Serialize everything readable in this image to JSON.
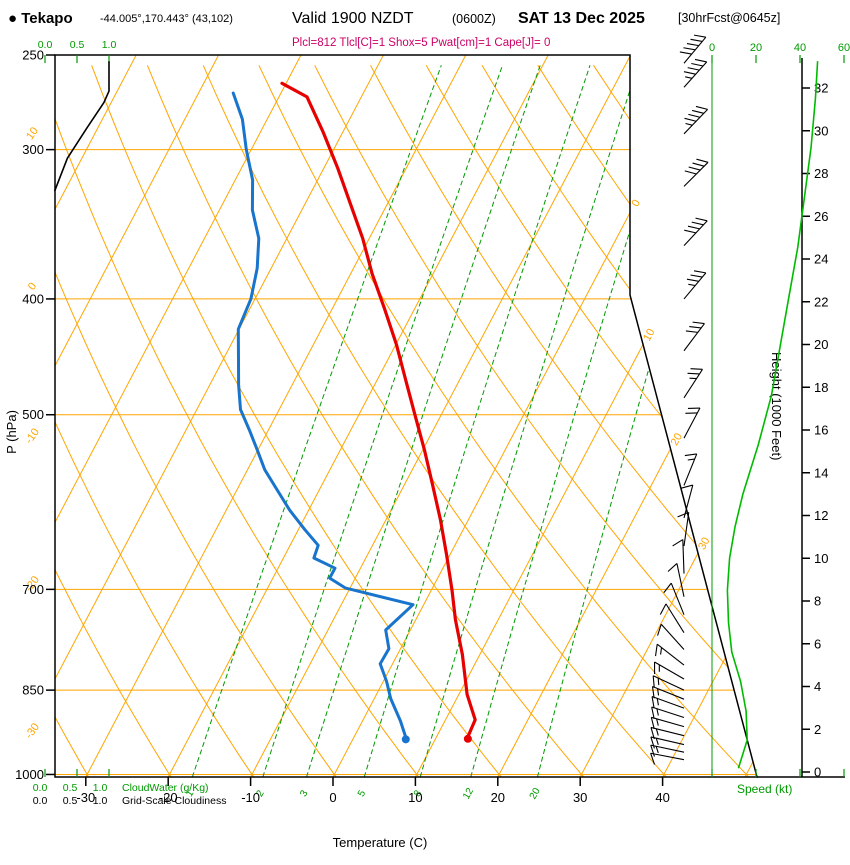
{
  "header": {
    "station": "● Tekapo",
    "coords": "-44.005°,170.443° (43,102)",
    "valid_main": "Valid 1900 NZDT",
    "valid_zulu": "(0600Z)",
    "valid_date": "SAT 13 Dec 2025",
    "forecast_ref": "[30hrFcst@0645z]",
    "indices": "Plcl=812 Tlcl[C]=1 Shox=5 Pwat[cm]=1 Cape[J]= 0"
  },
  "axes": {
    "pressure_label": "P (hPa)",
    "pressure_ticks": [
      250,
      300,
      400,
      500,
      700,
      850,
      1000
    ],
    "temp_label": "Temperature (C)",
    "temp_ticks": [
      -30,
      -20,
      -10,
      0,
      10,
      20,
      30,
      40
    ],
    "height_label": "Height (1000 Feet)",
    "height_ticks": [
      0,
      2,
      4,
      6,
      8,
      10,
      12,
      14,
      16,
      18,
      20,
      22,
      24,
      26,
      28,
      30,
      32
    ],
    "speed_label": "Speed (kt)",
    "speed_ticks": [
      0,
      20,
      40,
      60
    ],
    "cloud_scale_ticks": [
      "0.0",
      "0.5",
      "1.0"
    ],
    "cloudwater_label": "CloudWater (g/Kg)",
    "cloudiness_label": "Grid-Scale Cloudiness"
  },
  "chart_data": {
    "type": "skewt-logp-sounding",
    "title": "Tekapo 30hr forecast sounding valid 1900 NZDT (0600Z) SAT 13 Dec 2025",
    "pressure_range_hpa": [
      1005,
      250
    ],
    "temp_axis_range_c": [
      -35,
      45
    ],
    "temperature_trace_p_degC": [
      [
        930,
        13.8
      ],
      [
        900,
        13.6
      ],
      [
        857,
        11.0
      ],
      [
        794,
        7.9
      ],
      [
        742,
        4.8
      ],
      [
        701,
        2.5
      ],
      [
        655,
        -0.4
      ],
      [
        612,
        -3.4
      ],
      [
        572,
        -6.6
      ],
      [
        535,
        -9.8
      ],
      [
        500,
        -13.2
      ],
      [
        468,
        -16.5
      ],
      [
        437,
        -19.9
      ],
      [
        408,
        -23.6
      ],
      [
        381,
        -27.4
      ],
      [
        356,
        -30.8
      ],
      [
        333,
        -34.5
      ],
      [
        311,
        -38.3
      ],
      [
        290,
        -42.4
      ],
      [
        271,
        -46.6
      ],
      [
        264,
        -50.5
      ]
    ],
    "dewpoint_trace_p_degC": [
      [
        931,
        6.3
      ],
      [
        902,
        4.6
      ],
      [
        864,
        2.0
      ],
      [
        836,
        0.4
      ],
      [
        808,
        -1.5
      ],
      [
        785,
        -1.4
      ],
      [
        757,
        -3.0
      ],
      [
        721,
        -1.3
      ],
      [
        698,
        -10.6
      ],
      [
        685,
        -13.1
      ],
      [
        672,
        -13.1
      ],
      [
        659,
        -16.3
      ],
      [
        643,
        -16.6
      ],
      [
        624,
        -19.2
      ],
      [
        601,
        -22.3
      ],
      [
        578,
        -25.1
      ],
      [
        556,
        -27.9
      ],
      [
        535,
        -30.1
      ],
      [
        515,
        -32.3
      ],
      [
        495,
        -34.7
      ],
      [
        472,
        -36.5
      ],
      [
        450,
        -38.1
      ],
      [
        424,
        -40.1
      ],
      [
        400,
        -40.5
      ],
      [
        377,
        -41.7
      ],
      [
        356,
        -43.4
      ],
      [
        337,
        -46.0
      ],
      [
        318,
        -47.9
      ],
      [
        300,
        -50.6
      ],
      [
        283,
        -53.0
      ],
      [
        269,
        -55.8
      ]
    ],
    "wind_barbs_p_dir_kt": [
      [
        254,
        40,
        48
      ],
      [
        266,
        42,
        47
      ],
      [
        291,
        44,
        45
      ],
      [
        322,
        45,
        42
      ],
      [
        361,
        43,
        39
      ],
      [
        400,
        40,
        35
      ],
      [
        442,
        37,
        31
      ],
      [
        484,
        33,
        27
      ],
      [
        523,
        28,
        22
      ],
      [
        573,
        22,
        15
      ],
      [
        610,
        15,
        11
      ],
      [
        644,
        8,
        9
      ],
      [
        679,
        358,
        8
      ],
      [
        710,
        348,
        8
      ],
      [
        735,
        338,
        9
      ],
      [
        761,
        328,
        10
      ],
      [
        786,
        318,
        12
      ],
      [
        810,
        308,
        13
      ],
      [
        832,
        300,
        14
      ],
      [
        850,
        295,
        15
      ],
      [
        865,
        292,
        15
      ],
      [
        880,
        290,
        16
      ],
      [
        896,
        288,
        15
      ],
      [
        912,
        286,
        15
      ],
      [
        928,
        284,
        14
      ],
      [
        944,
        283,
        13
      ],
      [
        958,
        282,
        13
      ],
      [
        972,
        281,
        12
      ]
    ],
    "wind_speed_profile_p_kt": [
      [
        988,
        12
      ],
      [
        936,
        16
      ],
      [
        885,
        15.5
      ],
      [
        836,
        13
      ],
      [
        790,
        9
      ],
      [
        746,
        7.5
      ],
      [
        701,
        7
      ],
      [
        659,
        8
      ],
      [
        620,
        10.5
      ],
      [
        583,
        14
      ],
      [
        530,
        21
      ],
      [
        482,
        27
      ],
      [
        438,
        31
      ],
      [
        398,
        35
      ],
      [
        362,
        39
      ],
      [
        329,
        42
      ],
      [
        299,
        45
      ],
      [
        272,
        47
      ],
      [
        253,
        48
      ]
    ],
    "cloud_fraction_profile_p_frac": [
      [
        325,
        0.15
      ],
      [
        305,
        0.35
      ],
      [
        288,
        0.65
      ],
      [
        274,
        0.92
      ],
      [
        268,
        1.0
      ],
      [
        253,
        1.0
      ]
    ],
    "isotherm_step_degC": 10,
    "isotherm_boundary_labels": [
      0,
      10,
      20,
      30
    ],
    "dry_adiabat_labels": [
      10,
      0,
      -10,
      -20,
      -30
    ],
    "mixing_ratio_lines_gkg": [
      1,
      2,
      3,
      5,
      8,
      12,
      20
    ],
    "colors": {
      "grid": "#FFA500",
      "moisture": "#009900",
      "temperature": "#E60000",
      "dewpoint": "#1874CD",
      "indices": "#CC0066",
      "speed_curve": "#00BB00"
    }
  }
}
